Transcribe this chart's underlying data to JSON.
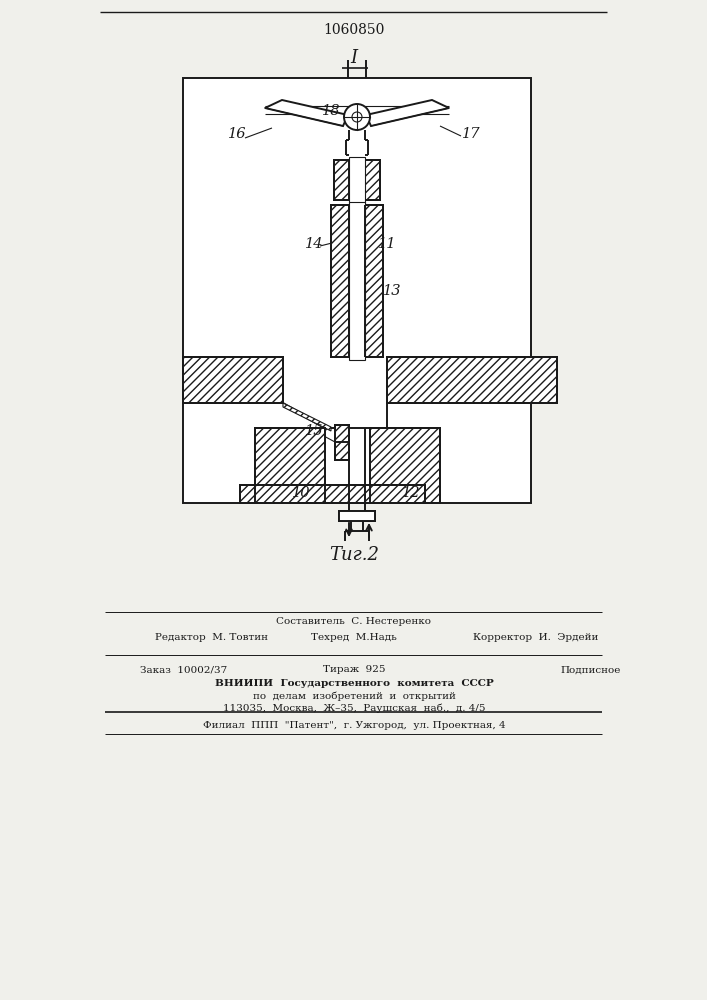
{
  "patent_number": "1060850",
  "fig_label": "Τиг.2",
  "section_label": "I",
  "bg_color": "#f0f0eb",
  "line_color": "#1a1a1a",
  "footer_col1_row1": "Редактор  М. Товтин",
  "footer_col2_row1": "Составитель  С. Нестеренко",
  "footer_col2_row2": "Техред  М.Надь",
  "footer_col3_row2": "Корректор  И.  Эрдейи",
  "order_text": "Заказ  10002/37",
  "tirazh_text": "Тираж  925",
  "podpisnoe_text": "Подписное",
  "vniip1": "ВНИИПИ  Государственного  комитета  СССР",
  "vniip2": "по  делам  изобретений  и  открытий",
  "vniip3": "113035,  Москва,  Ж–35,  Раушская  наб.,  д. 4/5",
  "filial": "Филиал  ППП  \"Патент\",  г. Ужгород,  ул. Проектная, 4"
}
